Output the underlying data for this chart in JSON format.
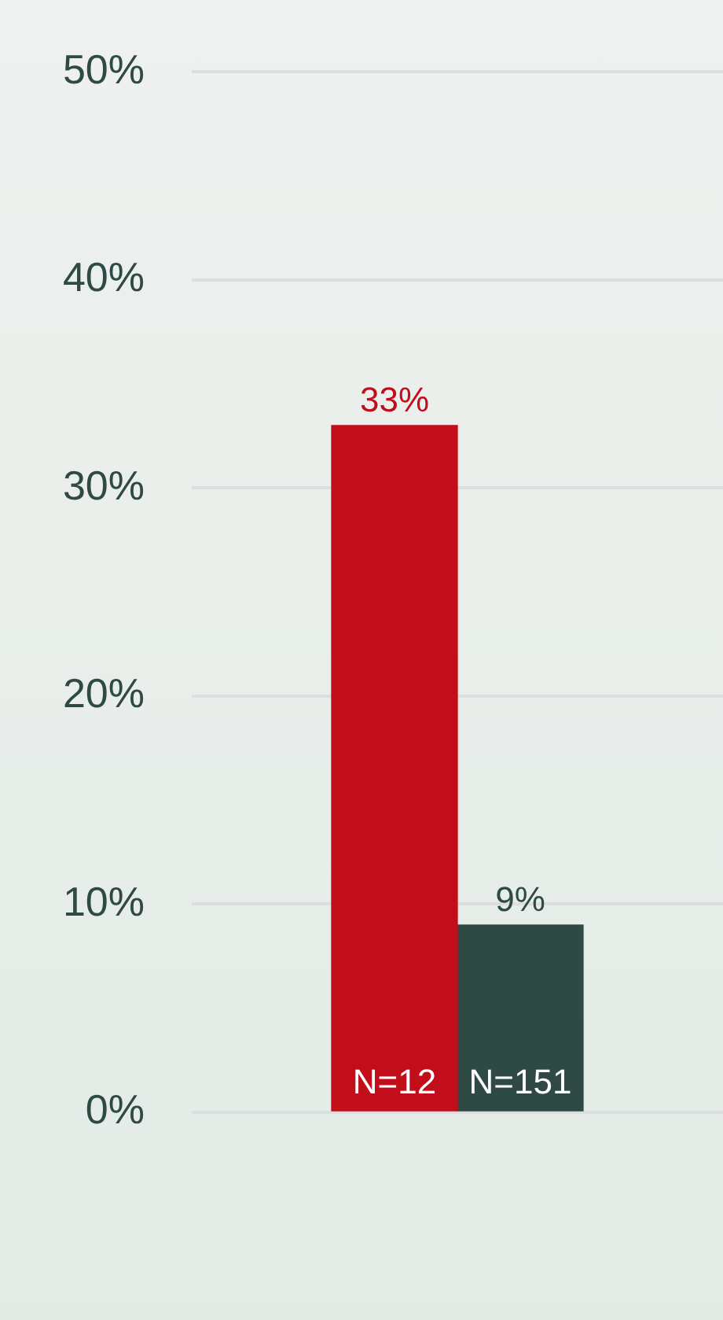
{
  "chart_data": {
    "type": "bar",
    "categories": [
      null
    ],
    "series": [
      {
        "color": "#c20e1a",
        "values": [
          33
        ],
        "value_labels": [
          "33%"
        ]
      },
      {
        "color": "#2f4a45",
        "values": [
          9
        ],
        "value_labels": [
          "9%"
        ]
      }
    ],
    "annotations": [
      "N=12",
      "N=151"
    ],
    "ylim": [
      0,
      50
    ],
    "yticks": [
      {
        "value": 0,
        "label": "0%"
      },
      {
        "value": 10,
        "label": "10%"
      },
      {
        "value": 20,
        "label": "20%"
      },
      {
        "value": 30,
        "label": "30%"
      },
      {
        "value": 40,
        "label": "40%"
      },
      {
        "value": 50,
        "label": "50%"
      }
    ],
    "grid": "y",
    "legend": false
  }
}
